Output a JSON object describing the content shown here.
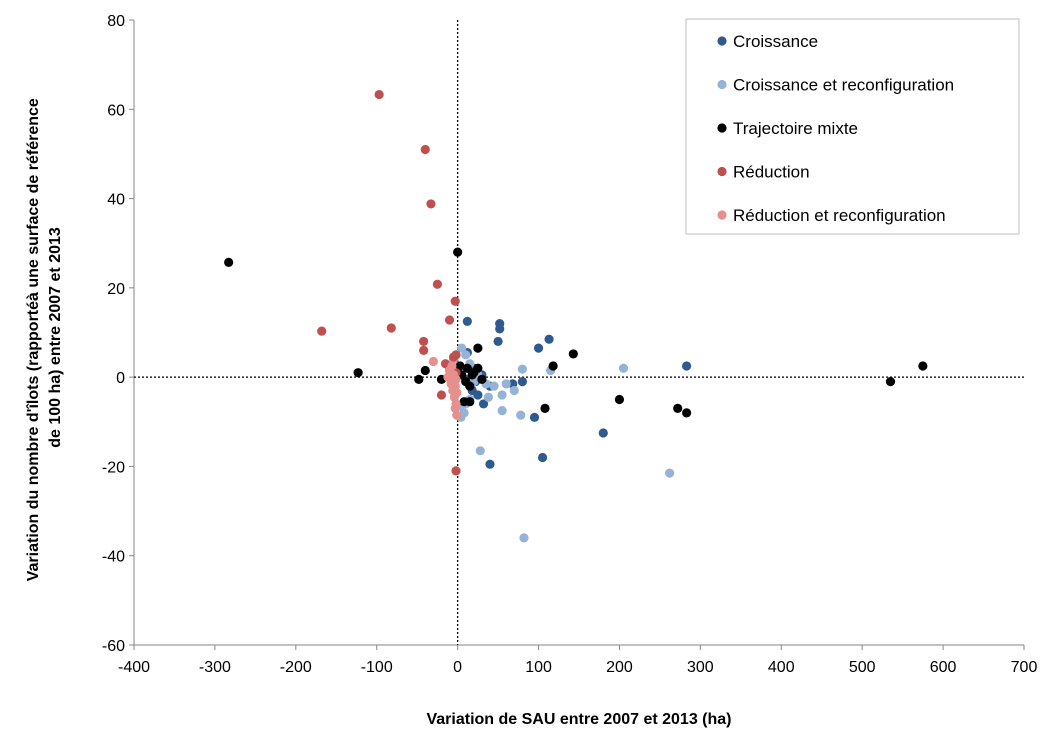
{
  "chart_data": {
    "type": "scatter",
    "title": "",
    "xlabel": "Variation de SAU entre 2007 et 2013 (ha)",
    "ylabel": "Variation du nombre d'îlots (rapporté à une surface de référence de 100 ha) entre 2007 et 2013",
    "ylabel_lines": [
      "Variation du nombre d'îlots (rapportéà une surface de référence",
      "de 100 ha) entre 2007 et 2013"
    ],
    "xlim": [
      -400,
      700
    ],
    "ylim": [
      -60,
      80
    ],
    "xticks": [
      -400,
      -300,
      -200,
      -100,
      0,
      100,
      200,
      300,
      400,
      500,
      600,
      700
    ],
    "yticks": [
      -60,
      -40,
      -20,
      0,
      20,
      40,
      60,
      80
    ],
    "xtick_labels": [
      "-400",
      "-300",
      "-200",
      "-100",
      "0",
      "100",
      "200",
      "300",
      "400",
      "500",
      "600",
      "700"
    ],
    "ytick_labels": [
      "-60",
      "-40",
      "-20",
      "0",
      "20",
      "40",
      "60",
      "80"
    ],
    "grid": false,
    "reference_lines": {
      "x": 0,
      "y": 0,
      "style": "dotted"
    },
    "legend_position": "top-right",
    "series": [
      {
        "name": "Croissance",
        "color": "#2e5a8f",
        "points": [
          [
            12,
            12.5
          ],
          [
            52,
            12
          ],
          [
            52,
            10.8
          ],
          [
            113,
            8.5
          ],
          [
            50,
            8
          ],
          [
            100,
            6.5
          ],
          [
            12,
            5.5
          ],
          [
            283,
            2.5
          ],
          [
            20,
            2
          ],
          [
            30,
            0.5
          ],
          [
            10,
            -0.5
          ],
          [
            22,
            -1
          ],
          [
            80,
            -1
          ],
          [
            68,
            -1.5
          ],
          [
            40,
            -2
          ],
          [
            18,
            -3
          ],
          [
            25,
            -4
          ],
          [
            32,
            -6
          ],
          [
            95,
            -9
          ],
          [
            180,
            -12.5
          ],
          [
            105,
            -18
          ],
          [
            40,
            -19.5
          ]
        ]
      },
      {
        "name": "Croissance et reconfiguration",
        "color": "#95b3d7",
        "points": [
          [
            205,
            2
          ],
          [
            5,
            6.5
          ],
          [
            10,
            5
          ],
          [
            15,
            3
          ],
          [
            -5,
            4
          ],
          [
            20,
            -1
          ],
          [
            80,
            1.8
          ],
          [
            115,
            1.5
          ],
          [
            35,
            -1.5
          ],
          [
            60,
            -1.5
          ],
          [
            70,
            -3
          ],
          [
            55,
            -4
          ],
          [
            38,
            -4.5
          ],
          [
            15,
            -5
          ],
          [
            10,
            -6
          ],
          [
            3,
            -6.5
          ],
          [
            55,
            -7.5
          ],
          [
            8,
            -8
          ],
          [
            78,
            -8.5
          ],
          [
            4,
            -9
          ],
          [
            28,
            -16.5
          ],
          [
            262,
            -21.5
          ],
          [
            82,
            -36
          ],
          [
            45,
            -2
          ],
          [
            25,
            0.5
          ]
        ]
      },
      {
        "name": "Trajectoire mixte",
        "color": "#000000",
        "points": [
          [
            -283,
            25.7
          ],
          [
            0,
            28
          ],
          [
            -123,
            1
          ],
          [
            -48,
            -0.5
          ],
          [
            -40,
            1.5
          ],
          [
            -20,
            -0.5
          ],
          [
            143,
            5.2
          ],
          [
            118,
            2.5
          ],
          [
            575,
            2.5
          ],
          [
            535,
            -1
          ],
          [
            25,
            6.5
          ],
          [
            25,
            2
          ],
          [
            12,
            2
          ],
          [
            18,
            0.5
          ],
          [
            30,
            -0.5
          ],
          [
            10,
            -1
          ],
          [
            5,
            0.5
          ],
          [
            20,
            1
          ],
          [
            15,
            -2
          ],
          [
            8,
            -5.5
          ],
          [
            15,
            -5.5
          ],
          [
            108,
            -7
          ],
          [
            200,
            -5
          ],
          [
            272,
            -7
          ],
          [
            283,
            -8
          ],
          [
            3,
            2.5
          ]
        ]
      },
      {
        "name": "Réduction",
        "color": "#c0504d",
        "points": [
          [
            -97,
            63.3
          ],
          [
            -40,
            51
          ],
          [
            -33,
            38.8
          ],
          [
            -25,
            20.8
          ],
          [
            -3,
            17
          ],
          [
            -168,
            10.3
          ],
          [
            -82,
            11
          ],
          [
            -10,
            12.8
          ],
          [
            -42,
            8
          ],
          [
            -42,
            6
          ],
          [
            -5,
            4.5
          ],
          [
            -2,
            5
          ],
          [
            -15,
            3
          ],
          [
            -10,
            2
          ],
          [
            -2,
            1
          ],
          [
            -20,
            -4
          ],
          [
            -2,
            -21
          ]
        ]
      },
      {
        "name": "Réduction et reconfiguration",
        "color": "#e6908e",
        "points": [
          [
            -30,
            3.5
          ],
          [
            -10,
            1.5
          ],
          [
            -5,
            0.5
          ],
          [
            -2,
            -0.5
          ],
          [
            -8,
            -1.5
          ],
          [
            -3,
            -2
          ],
          [
            -6,
            -3
          ],
          [
            -1,
            -3.5
          ],
          [
            -4,
            -4.5
          ],
          [
            -2,
            -6
          ],
          [
            -3,
            -7
          ],
          [
            -1,
            -8.5
          ],
          [
            -12,
            0
          ],
          [
            -7,
            2.5
          ]
        ]
      }
    ]
  }
}
